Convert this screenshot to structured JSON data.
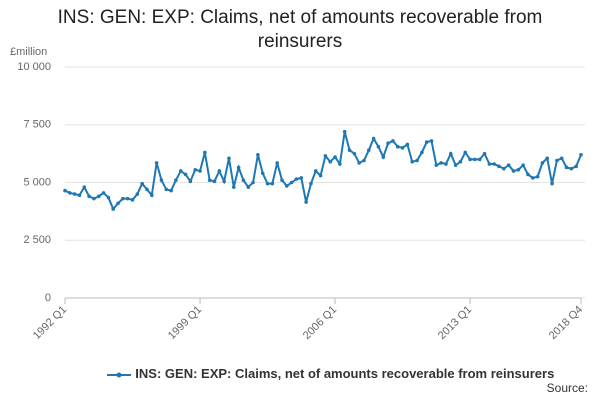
{
  "chart_data": {
    "type": "line",
    "title": "INS: GEN: EXP: Claims, net of amounts recoverable from reinsurers",
    "y_label": "£million",
    "source": "Source:",
    "categories": [
      "1992 Q1",
      null,
      null,
      null,
      null,
      null,
      null,
      null,
      null,
      null,
      null,
      null,
      null,
      null,
      null,
      null,
      null,
      null,
      null,
      null,
      null,
      null,
      null,
      null,
      null,
      null,
      null,
      null,
      "1999 Q1",
      null,
      null,
      null,
      null,
      null,
      null,
      null,
      null,
      null,
      null,
      null,
      null,
      null,
      null,
      null,
      null,
      null,
      null,
      null,
      null,
      null,
      null,
      null,
      null,
      null,
      null,
      null,
      "2006 Q1",
      null,
      null,
      null,
      null,
      null,
      null,
      null,
      null,
      null,
      null,
      null,
      null,
      null,
      null,
      null,
      null,
      null,
      null,
      null,
      null,
      null,
      null,
      null,
      null,
      null,
      null,
      null,
      "2013 Q1",
      null,
      null,
      null,
      null,
      null,
      null,
      null,
      null,
      null,
      null,
      null,
      null,
      null,
      null,
      null,
      null,
      null,
      null,
      null,
      null,
      null,
      null,
      "2018 Q4"
    ],
    "series": [
      {
        "name": "INS: GEN: EXP: Claims, net of amounts recoverable from reinsurers",
        "color": "#1f78b4",
        "values": [
          4650,
          4550,
          4500,
          4450,
          4800,
          4400,
          4300,
          4400,
          4550,
          4350,
          3850,
          4100,
          4300,
          4300,
          4250,
          4500,
          4950,
          4700,
          4450,
          5850,
          5100,
          4700,
          4650,
          5100,
          5500,
          5350,
          5050,
          5550,
          5500,
          6300,
          5100,
          5050,
          5500,
          5050,
          6050,
          4800,
          5650,
          5100,
          4800,
          5000,
          6200,
          5400,
          4950,
          4950,
          5850,
          5100,
          4850,
          5000,
          5150,
          5200,
          4150,
          4950,
          5500,
          5300,
          6150,
          5900,
          6100,
          5800,
          7200,
          6400,
          6250,
          5850,
          5950,
          6400,
          6900,
          6550,
          6100,
          6700,
          6800,
          6550,
          6500,
          6650,
          5900,
          5950,
          6300,
          6750,
          6800,
          5750,
          5850,
          5800,
          6250,
          5750,
          5900,
          6300,
          6000,
          6000,
          6000,
          6250,
          5800,
          5800,
          5700,
          5600,
          5750,
          5500,
          5550,
          5750,
          5350,
          5200,
          5250,
          5850,
          6050,
          4950,
          5950,
          6050,
          5650,
          5600,
          5700,
          6200
        ]
      }
    ],
    "ylim": [
      0,
      10000
    ],
    "yticks": [
      0,
      {
        "value": 2500,
        "label": "2 500"
      },
      {
        "value": 5000,
        "label": "5 000"
      },
      {
        "value": 7500,
        "label": "7 500"
      },
      {
        "value": 10000,
        "label": "10 000"
      }
    ],
    "grid": true
  }
}
